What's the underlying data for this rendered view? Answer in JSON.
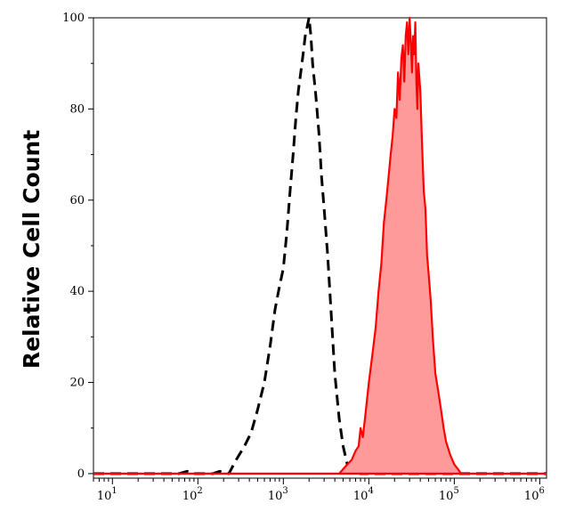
{
  "chart_data": {
    "type": "area",
    "title": "",
    "xlabel": "",
    "ylabel": "Relative Cell Count",
    "xscale": "log",
    "xlim": [
      6,
      1200000
    ],
    "ylim": [
      -1,
      100
    ],
    "grid": false,
    "y_ticks": [
      0,
      20,
      40,
      60,
      80,
      100
    ],
    "y_tick_labels": [
      "0",
      "20",
      "40",
      "60",
      "80",
      "100"
    ],
    "x_ticks": [
      10,
      100,
      1000,
      10000,
      100000,
      1000000
    ],
    "x_tick_labels": [
      {
        "base": "10",
        "exp": "1"
      },
      {
        "base": "10",
        "exp": "2"
      },
      {
        "base": "10",
        "exp": "3"
      },
      {
        "base": "10",
        "exp": "4"
      },
      {
        "base": "10",
        "exp": "5"
      },
      {
        "base": "10",
        "exp": "6"
      }
    ],
    "series": [
      {
        "style": "dashed",
        "color": "#000000",
        "fill": "none",
        "x": [
          6,
          60,
          75,
          90,
          150,
          180,
          230,
          280,
          350,
          420,
          500,
          600,
          700,
          800,
          900,
          1000,
          1100,
          1200,
          1300,
          1400,
          1500,
          1600,
          1700,
          1800,
          1900,
          2000,
          2100,
          2200,
          2400,
          2600,
          2800,
          3000,
          3300,
          3600,
          4000,
          4500,
          5000,
          5600,
          6500,
          8000,
          1200000
        ],
        "values": [
          0,
          0,
          0.5,
          0,
          0,
          0.5,
          0,
          3,
          6,
          9,
          14,
          20,
          28,
          36,
          41,
          45,
          53,
          62,
          70,
          78,
          84,
          88,
          92,
          96,
          98,
          100,
          96,
          90,
          83,
          75,
          65,
          58,
          48,
          36,
          22,
          12,
          6,
          2,
          0.5,
          0,
          0
        ]
      },
      {
        "style": "solid",
        "color": "#ff0000",
        "fill": "#ff9a9a",
        "x": [
          6,
          300000,
          4500,
          5000,
          5600,
          6300,
          7000,
          7600,
          8000,
          8500,
          9000,
          9500,
          10000,
          11000,
          12000,
          13000,
          14000,
          15000,
          16000,
          17000,
          18000,
          19000,
          20000,
          21000,
          22000,
          23000,
          24000,
          25000,
          26000,
          27000,
          28000,
          29000,
          30000,
          31000,
          32000,
          33000,
          34000,
          35000,
          36000,
          37000,
          38000,
          40000,
          42000,
          44000,
          46000,
          48000,
          50000,
          53000,
          56000,
          60000,
          65000,
          70000,
          75000,
          80000,
          90000,
          100000,
          110000,
          120000,
          1200000
        ],
        "values": [
          0,
          0,
          0,
          1,
          2,
          3,
          5,
          6,
          10,
          8,
          12,
          16,
          20,
          26,
          32,
          40,
          46,
          55,
          60,
          65,
          70,
          74,
          80,
          78,
          88,
          82,
          91,
          94,
          86,
          96,
          99,
          92,
          100,
          95,
          88,
          96,
          92,
          99,
          86,
          80,
          90,
          84,
          72,
          62,
          58,
          48,
          44,
          38,
          30,
          22,
          18,
          14,
          10,
          7,
          4,
          2,
          1,
          0,
          0
        ]
      }
    ]
  }
}
